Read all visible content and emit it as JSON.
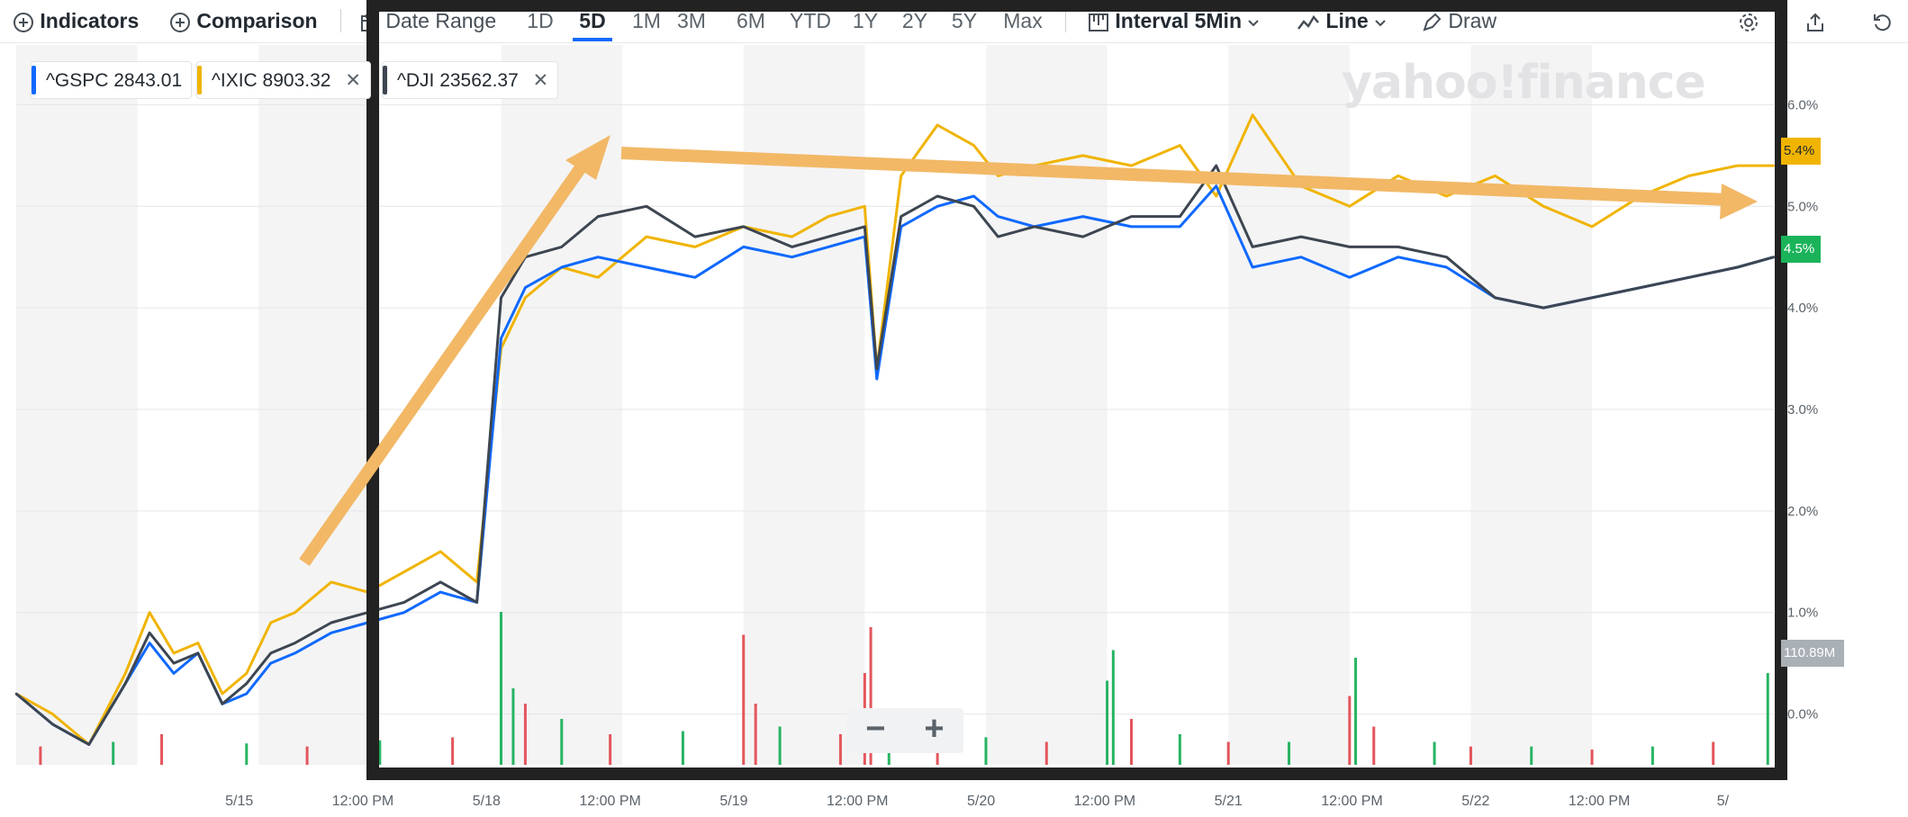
{
  "toolbar": {
    "indicators": "Indicators",
    "comparison": "Comparison",
    "date_range": "Date Range",
    "ranges": [
      "1D",
      "5D",
      "1M",
      "3M",
      "6M",
      "YTD",
      "1Y",
      "2Y",
      "5Y",
      "Max"
    ],
    "active_range": "5D",
    "interval_label": "Interval",
    "interval_value": "5Min",
    "line_label": "Line",
    "draw_label": "Draw"
  },
  "watermark": "yahoo!finance",
  "chips": [
    {
      "symbol": "^GSPC",
      "value": "2843.01",
      "color": "#0f69ff",
      "removable": false
    },
    {
      "symbol": "^IXIC",
      "value": "8903.32",
      "color": "#f0b400",
      "removable": true
    },
    {
      "symbol": "^DJI",
      "value": "23562.37",
      "color": "#3d4651",
      "removable": true
    }
  ],
  "zoom": {
    "minus": "−",
    "plus": "+"
  },
  "badges": {
    "ixic_last": "5.4%",
    "gspc_last": "4.5%",
    "volume": "110.89M"
  },
  "chart_data": {
    "type": "line",
    "x_tick_labels": [
      "5/15",
      "12:00 PM",
      "5/18",
      "12:00 PM",
      "5/19",
      "12:00 PM",
      "5/20",
      "12:00 PM",
      "5/21",
      "12:00 PM",
      "5/22",
      "12:00 PM",
      "5/"
    ],
    "y_tick_labels": [
      "6.0%",
      "5.0%",
      "4.0%",
      "3.0%",
      "2.0%",
      "1.0%",
      "0.0%"
    ],
    "ylim": [
      -0.5,
      6.5
    ],
    "x_range": [
      0,
      14.5
    ],
    "day_bands": [
      [
        0,
        1
      ],
      [
        2,
        3
      ],
      [
        4,
        5
      ],
      [
        6,
        7
      ],
      [
        8,
        9
      ],
      [
        10,
        11
      ],
      [
        12,
        13
      ]
    ],
    "series": [
      {
        "name": "^IXIC",
        "color": "#f0b400",
        "x": [
          0.0,
          0.3,
          0.6,
          0.9,
          1.1,
          1.3,
          1.5,
          1.7,
          1.9,
          2.1,
          2.3,
          2.6,
          2.9,
          3.2,
          3.5,
          3.8,
          4.0,
          4.2,
          4.5,
          4.8,
          5.2,
          5.6,
          6.0,
          6.4,
          6.7,
          7.0,
          7.1,
          7.3,
          7.6,
          7.9,
          8.1,
          8.4,
          8.8,
          9.2,
          9.6,
          9.9,
          10.2,
          10.6,
          11.0,
          11.4,
          11.8,
          12.2,
          12.6,
          13.0,
          13.4,
          13.8,
          14.2,
          14.5
        ],
        "y": [
          0.2,
          0.0,
          -0.3,
          0.4,
          1.0,
          0.6,
          0.7,
          0.2,
          0.4,
          0.9,
          1.0,
          1.3,
          1.2,
          1.4,
          1.6,
          1.3,
          3.6,
          4.1,
          4.4,
          4.3,
          4.7,
          4.6,
          4.8,
          4.7,
          4.9,
          5.0,
          3.4,
          5.3,
          5.8,
          5.6,
          5.3,
          5.4,
          5.5,
          5.4,
          5.6,
          5.1,
          5.9,
          5.2,
          5.0,
          5.3,
          5.1,
          5.3,
          5.0,
          4.8,
          5.1,
          5.3,
          5.4,
          5.4
        ]
      },
      {
        "name": "^GSPC",
        "color": "#0f69ff",
        "x": [
          0.0,
          0.3,
          0.6,
          0.9,
          1.1,
          1.3,
          1.5,
          1.7,
          1.9,
          2.1,
          2.3,
          2.6,
          2.9,
          3.2,
          3.5,
          3.8,
          4.0,
          4.2,
          4.5,
          4.8,
          5.2,
          5.6,
          6.0,
          6.4,
          6.7,
          7.0,
          7.1,
          7.3,
          7.6,
          7.9,
          8.1,
          8.4,
          8.8,
          9.2,
          9.6,
          9.9,
          10.2,
          10.6,
          11.0,
          11.4,
          11.8,
          12.2,
          12.6,
          13.0,
          13.4,
          13.8,
          14.2,
          14.5
        ],
        "y": [
          0.2,
          -0.1,
          -0.3,
          0.3,
          0.7,
          0.4,
          0.6,
          0.1,
          0.2,
          0.5,
          0.6,
          0.8,
          0.9,
          1.0,
          1.2,
          1.1,
          3.7,
          4.2,
          4.4,
          4.5,
          4.4,
          4.3,
          4.6,
          4.5,
          4.6,
          4.7,
          3.3,
          4.8,
          5.0,
          5.1,
          4.9,
          4.8,
          4.9,
          4.8,
          4.8,
          5.2,
          4.4,
          4.5,
          4.3,
          4.5,
          4.4,
          4.1,
          4.0,
          4.1,
          4.2,
          4.3,
          4.4,
          4.5
        ]
      },
      {
        "name": "^DJI",
        "color": "#3d4651",
        "x": [
          0.0,
          0.3,
          0.6,
          0.9,
          1.1,
          1.3,
          1.5,
          1.7,
          1.9,
          2.1,
          2.3,
          2.6,
          2.9,
          3.2,
          3.5,
          3.8,
          4.0,
          4.2,
          4.5,
          4.8,
          5.2,
          5.6,
          6.0,
          6.4,
          6.7,
          7.0,
          7.1,
          7.3,
          7.6,
          7.9,
          8.1,
          8.4,
          8.8,
          9.2,
          9.6,
          9.9,
          10.2,
          10.6,
          11.0,
          11.4,
          11.8,
          12.2,
          12.6,
          13.0,
          13.4,
          13.8,
          14.2,
          14.5
        ],
        "y": [
          0.2,
          -0.1,
          -0.3,
          0.3,
          0.8,
          0.5,
          0.6,
          0.1,
          0.3,
          0.6,
          0.7,
          0.9,
          1.0,
          1.1,
          1.3,
          1.1,
          4.1,
          4.5,
          4.6,
          4.9,
          5.0,
          4.7,
          4.8,
          4.6,
          4.7,
          4.8,
          3.4,
          4.9,
          5.1,
          5.0,
          4.7,
          4.8,
          4.7,
          4.9,
          4.9,
          5.4,
          4.6,
          4.7,
          4.6,
          4.6,
          4.5,
          4.1,
          4.0,
          4.1,
          4.2,
          4.3,
          4.4,
          4.5
        ]
      }
    ],
    "volume_x": [
      0.2,
      0.8,
      1.2,
      1.9,
      2.4,
      3.0,
      3.6,
      4.0,
      4.1,
      4.2,
      4.5,
      4.9,
      5.5,
      6.0,
      6.1,
      6.3,
      6.8,
      7.0,
      7.05,
      7.2,
      7.6,
      8.0,
      8.5,
      9.0,
      9.05,
      9.2,
      9.6,
      10.0,
      10.5,
      11.0,
      11.05,
      11.2,
      11.7,
      12.0,
      12.5,
      13.0,
      13.5,
      14.0,
      14.45
    ],
    "volume_y": [
      0.12,
      0.15,
      0.2,
      0.14,
      0.12,
      0.16,
      0.18,
      1.0,
      0.5,
      0.4,
      0.3,
      0.2,
      0.22,
      0.85,
      0.4,
      0.25,
      0.2,
      0.6,
      0.9,
      0.3,
      0.2,
      0.18,
      0.15,
      0.55,
      0.75,
      0.3,
      0.2,
      0.15,
      0.15,
      0.45,
      0.7,
      0.25,
      0.15,
      0.12,
      0.12,
      0.1,
      0.12,
      0.15,
      0.6
    ],
    "volume_colors": [
      "#e3565c",
      "#28b463",
      "#e3565c",
      "#28b463",
      "#e3565c",
      "#28b463",
      "#e3565c",
      "#28b463",
      "#28b463",
      "#e3565c",
      "#28b463",
      "#e3565c",
      "#28b463",
      "#e3565c",
      "#e3565c",
      "#28b463",
      "#e3565c",
      "#e3565c",
      "#e3565c",
      "#28b463",
      "#e3565c",
      "#28b463",
      "#e3565c",
      "#28b463",
      "#28b463",
      "#e3565c",
      "#28b463",
      "#e3565c",
      "#28b463",
      "#e3565c",
      "#28b463",
      "#e3565c",
      "#28b463",
      "#e3565c",
      "#28b463",
      "#e3565c",
      "#28b463",
      "#e3565c",
      "#28b463"
    ]
  }
}
